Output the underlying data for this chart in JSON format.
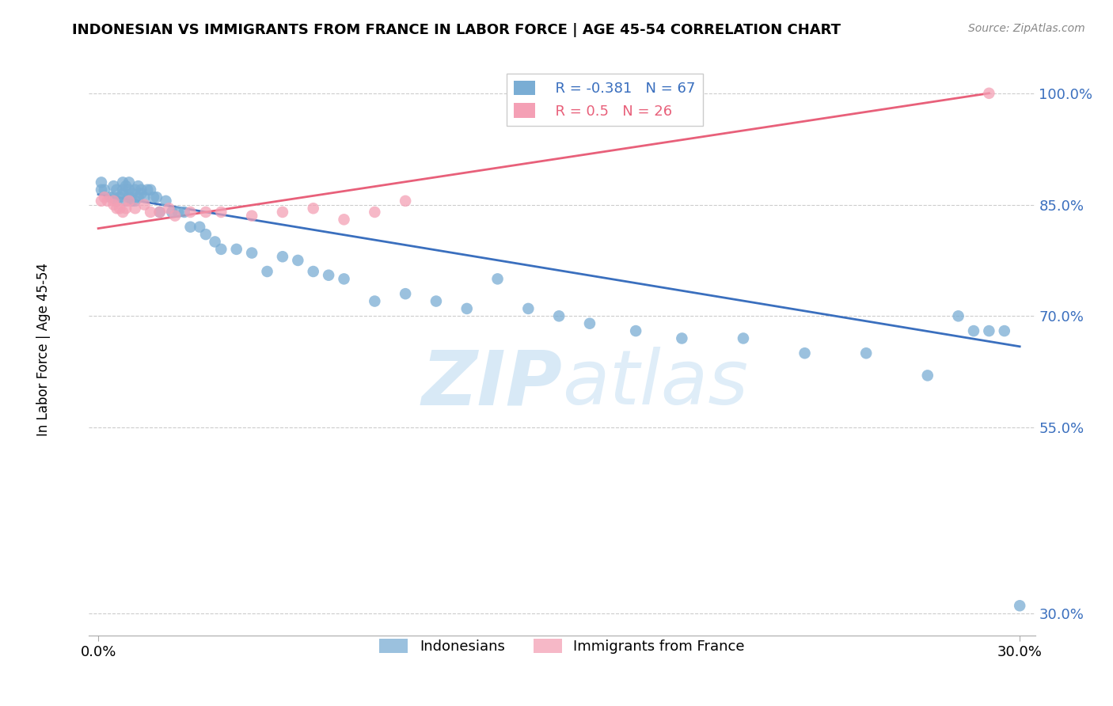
{
  "title": "INDONESIAN VS IMMIGRANTS FROM FRANCE IN LABOR FORCE | AGE 45-54 CORRELATION CHART",
  "source": "Source: ZipAtlas.com",
  "ylabel": "In Labor Force | Age 45-54",
  "xlim": [
    -0.003,
    0.305
  ],
  "ylim": [
    0.27,
    1.04
  ],
  "xtick_vals": [
    0.0,
    0.3
  ],
  "xtick_labels": [
    "0.0%",
    "30.0%"
  ],
  "ytick_vals": [
    0.3,
    0.55,
    0.7,
    0.85,
    1.0
  ],
  "ytick_labels": [
    "30.0%",
    "55.0%",
    "70.0%",
    "85.0%",
    "100.0%"
  ],
  "indonesian_R": -0.381,
  "indonesian_N": 67,
  "france_R": 0.5,
  "france_N": 26,
  "indonesian_color": "#7aadd4",
  "france_color": "#f4a0b5",
  "indonesian_line_color": "#3a6fbe",
  "france_line_color": "#e8607a",
  "legend_label_indonesian": "Indonesians",
  "legend_label_france": "Immigrants from France",
  "ind_x": [
    0.001,
    0.001,
    0.002,
    0.004,
    0.005,
    0.005,
    0.006,
    0.006,
    0.007,
    0.008,
    0.008,
    0.008,
    0.009,
    0.009,
    0.01,
    0.01,
    0.01,
    0.011,
    0.011,
    0.012,
    0.012,
    0.013,
    0.013,
    0.014,
    0.014,
    0.015,
    0.016,
    0.017,
    0.018,
    0.019,
    0.02,
    0.022,
    0.024,
    0.026,
    0.028,
    0.03,
    0.033,
    0.035,
    0.038,
    0.04,
    0.045,
    0.05,
    0.055,
    0.06,
    0.065,
    0.07,
    0.075,
    0.08,
    0.09,
    0.1,
    0.11,
    0.12,
    0.13,
    0.14,
    0.15,
    0.16,
    0.175,
    0.19,
    0.21,
    0.23,
    0.25,
    0.27,
    0.28,
    0.285,
    0.29,
    0.295,
    0.3
  ],
  "ind_y": [
    0.87,
    0.88,
    0.87,
    0.86,
    0.86,
    0.875,
    0.855,
    0.87,
    0.86,
    0.87,
    0.88,
    0.865,
    0.875,
    0.855,
    0.86,
    0.87,
    0.88,
    0.855,
    0.865,
    0.855,
    0.87,
    0.875,
    0.86,
    0.87,
    0.865,
    0.86,
    0.87,
    0.87,
    0.86,
    0.86,
    0.84,
    0.855,
    0.84,
    0.84,
    0.84,
    0.82,
    0.82,
    0.81,
    0.8,
    0.79,
    0.79,
    0.785,
    0.76,
    0.78,
    0.775,
    0.76,
    0.755,
    0.75,
    0.72,
    0.73,
    0.72,
    0.71,
    0.75,
    0.71,
    0.7,
    0.69,
    0.68,
    0.67,
    0.67,
    0.65,
    0.65,
    0.62,
    0.7,
    0.68,
    0.68,
    0.68,
    0.31
  ],
  "fra_x": [
    0.001,
    0.002,
    0.003,
    0.005,
    0.005,
    0.006,
    0.007,
    0.008,
    0.009,
    0.01,
    0.012,
    0.015,
    0.017,
    0.02,
    0.023,
    0.025,
    0.03,
    0.035,
    0.04,
    0.05,
    0.06,
    0.07,
    0.08,
    0.09,
    0.1,
    0.29
  ],
  "fra_y": [
    0.855,
    0.86,
    0.855,
    0.85,
    0.855,
    0.845,
    0.845,
    0.84,
    0.845,
    0.855,
    0.845,
    0.85,
    0.84,
    0.84,
    0.845,
    0.835,
    0.84,
    0.84,
    0.84,
    0.835,
    0.84,
    0.845,
    0.83,
    0.84,
    0.855,
    1.0
  ],
  "ind_line_x0": 0.0,
  "ind_line_x1": 0.3,
  "ind_line_y0": 0.864,
  "ind_line_y1": 0.659,
  "fra_line_x0": 0.0,
  "fra_line_x1": 0.29,
  "fra_line_y0": 0.818,
  "fra_line_y1": 1.0
}
